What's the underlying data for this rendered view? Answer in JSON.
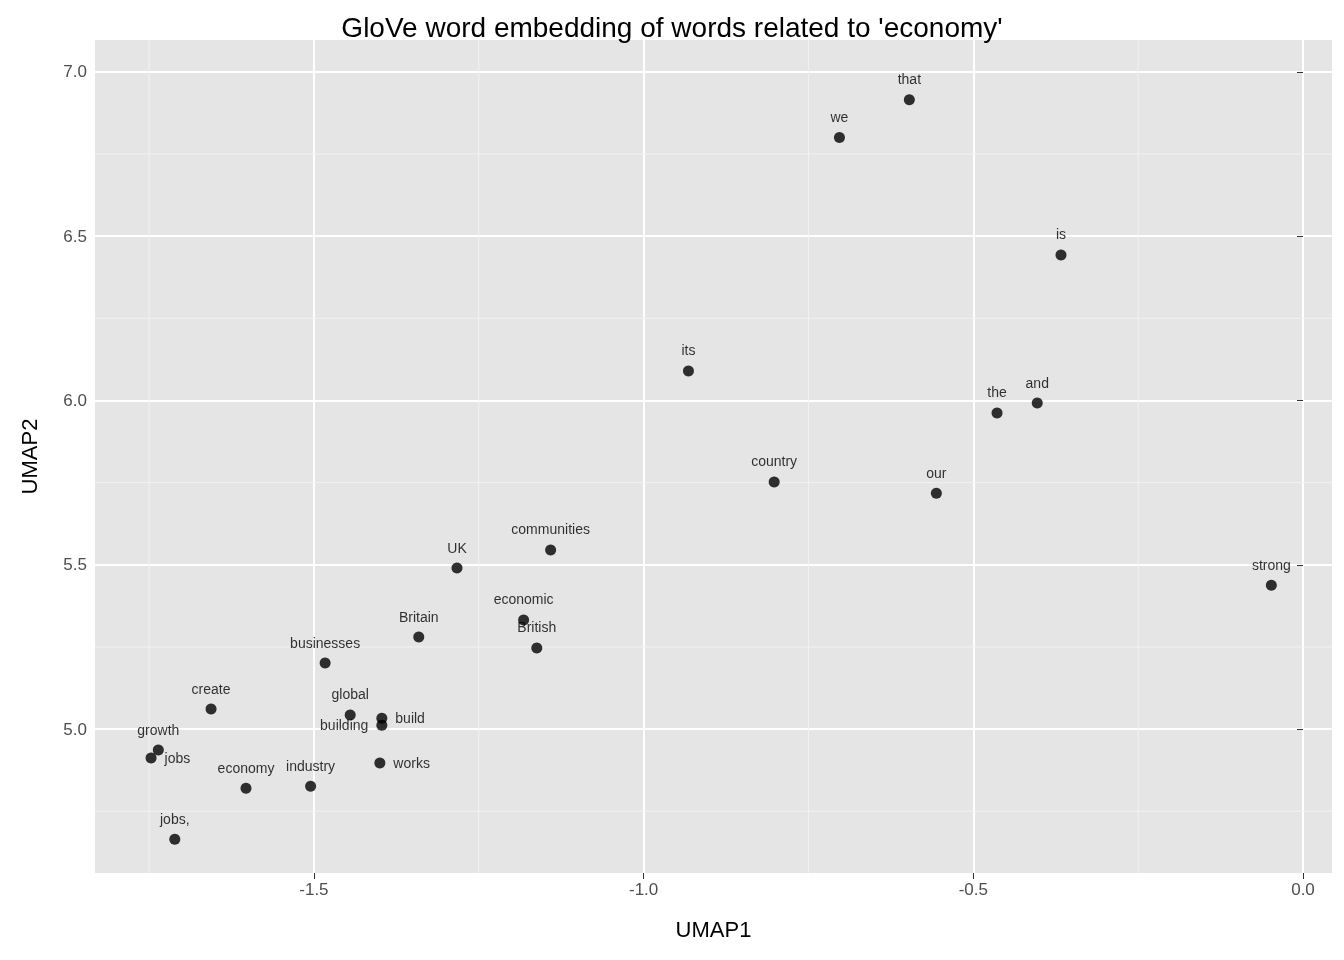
{
  "chart_data": {
    "type": "scatter",
    "title": "GloVe word embedding of words related to 'economy'",
    "xlabel": "UMAP1",
    "ylabel": "UMAP2",
    "x": [
      -0.597,
      -0.703,
      -0.367,
      -0.932,
      -0.464,
      -0.403,
      -0.802,
      -0.556,
      -1.141,
      -1.283,
      -0.048,
      -1.182,
      -1.341,
      -1.162,
      -1.483,
      -1.656,
      -1.445,
      -1.397,
      -1.397,
      -1.736,
      -1.747,
      -1.4,
      -1.603,
      -1.505,
      -1.711
    ],
    "values": [
      6.915,
      6.8,
      6.443,
      6.09,
      5.962,
      5.992,
      5.752,
      5.718,
      5.545,
      5.49,
      5.438,
      5.332,
      5.28,
      5.247,
      5.201,
      5.061,
      5.043,
      5.033,
      5.012,
      4.936,
      4.912,
      4.897,
      4.82,
      4.826,
      4.665
    ],
    "value_labels": [
      "that",
      "we",
      "is",
      "its",
      "the",
      "and",
      "country",
      "our",
      "communities",
      "UK",
      "strong",
      "economic",
      "Britain",
      "British",
      "businesses",
      "create",
      "global",
      "build",
      "building",
      "growth",
      "jobs",
      "works",
      "economy",
      "industry",
      "jobs,"
    ],
    "color": "#000000",
    "marker": "circle",
    "grid": true,
    "xlim": [
      -1.832,
      0.044
    ],
    "ylim": [
      4.562,
      7.097
    ],
    "xticks": [
      {
        "value": -1.5,
        "label": "-1.5"
      },
      {
        "value": -1.0,
        "label": "-1.0"
      },
      {
        "value": -0.5,
        "label": "-0.5"
      },
      {
        "value": 0.0,
        "label": "0.0"
      }
    ],
    "yticks": [
      {
        "value": 5.0,
        "label": "5.0"
      },
      {
        "value": 5.5,
        "label": "5.5"
      },
      {
        "value": 6.0,
        "label": "6.0"
      },
      {
        "value": 6.5,
        "label": "6.5"
      },
      {
        "value": 7.0,
        "label": "7.0"
      }
    ]
  }
}
